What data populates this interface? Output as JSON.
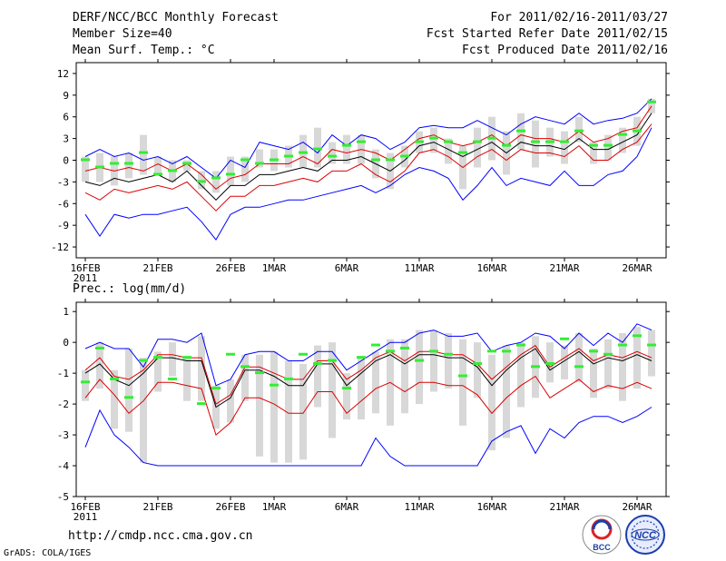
{
  "header": {
    "title": "DERF/NCC/BCC Monthly Forecast",
    "member_size": "Member Size=40",
    "variable": "Mean Surf. Temp.: °C",
    "period": "For 2011/02/16-2011/03/27",
    "refer_date": "Fcst Started Refer Date 2011/02/15",
    "produced_date": "Fcst Produced Date 2011/02/16"
  },
  "footer": {
    "url": "http://cmdp.ncc.cma.gov.cn",
    "credit": "GrADS: COLA/IGES",
    "logo_left_text": "BCC",
    "logo_right_text": "NCC"
  },
  "colors": {
    "envelope": "#0000ff",
    "spread": "#dd0000",
    "mean": "#000000",
    "box": "#d8d8d8",
    "median": "#33ee33"
  },
  "chart_data": [
    {
      "type": "line",
      "name": "temperature",
      "title": "Mean Surf. Temp.: °C",
      "xlabel": "",
      "ylabel": "",
      "ylim": [
        -13.5,
        13.5
      ],
      "yticks": [
        12,
        9,
        6,
        3,
        0,
        -3,
        -6,
        -9,
        -12
      ],
      "xticks": [
        {
          "day": 0,
          "label": "16FEB",
          "sub": "2011"
        },
        {
          "day": 5,
          "label": "21FEB"
        },
        {
          "day": 10,
          "label": "26FEB"
        },
        {
          "day": 13,
          "label": "1MAR"
        },
        {
          "day": 18,
          "label": "6MAR"
        },
        {
          "day": 23,
          "label": "11MAR"
        },
        {
          "day": 28,
          "label": "16MAR"
        },
        {
          "day": 33,
          "label": "21MAR"
        },
        {
          "day": 38,
          "label": "26MAR"
        }
      ],
      "days": 40,
      "series": [
        {
          "name": "ensemble max",
          "color": "#0000ff",
          "values": [
            0.5,
            1.5,
            0.5,
            1.0,
            0.0,
            0.5,
            -0.5,
            0.5,
            -1.0,
            -2.5,
            0.0,
            -1.0,
            2.5,
            2.0,
            1.5,
            2.5,
            1.0,
            3.5,
            2.0,
            3.5,
            3.0,
            1.5,
            2.5,
            4.5,
            4.8,
            4.5,
            4.5,
            5.5,
            4.5,
            3.5,
            5.0,
            6.0,
            5.5,
            5.0,
            6.5,
            5.0,
            5.5,
            5.8,
            6.5,
            8.5
          ]
        },
        {
          "name": "ensemble min",
          "color": "#0000ff",
          "values": [
            -7.5,
            -10.5,
            -7.5,
            -8.0,
            -7.5,
            -7.5,
            -7.0,
            -6.5,
            -8.5,
            -11.0,
            -7.5,
            -6.5,
            -6.5,
            -6.0,
            -5.5,
            -5.5,
            -5.0,
            -4.5,
            -4.0,
            -3.5,
            -4.5,
            -3.5,
            -2.0,
            -1.0,
            -1.5,
            -2.5,
            -5.5,
            -3.5,
            -1.0,
            -3.5,
            -2.5,
            -3.0,
            -3.5,
            -1.5,
            -3.5,
            -3.5,
            -2.0,
            -1.5,
            0.5,
            4.5
          ]
        },
        {
          "name": "spread upper",
          "color": "#dd0000",
          "values": [
            -1.5,
            -1.0,
            -1.5,
            -1.0,
            -1.5,
            -0.5,
            -1.5,
            -0.5,
            -2.0,
            -4.0,
            -2.5,
            -2.0,
            -0.5,
            -0.5,
            -0.5,
            0.5,
            -0.5,
            1.5,
            1.0,
            1.5,
            1.0,
            0.0,
            1.5,
            3.0,
            3.5,
            2.5,
            2.0,
            2.5,
            3.5,
            2.0,
            3.5,
            3.0,
            3.0,
            2.5,
            4.0,
            2.5,
            3.0,
            4.0,
            4.5,
            7.5
          ]
        },
        {
          "name": "ensemble mean",
          "color": "#000000",
          "values": [
            -3.0,
            -3.5,
            -2.5,
            -3.0,
            -2.5,
            -2.0,
            -3.0,
            -1.5,
            -3.5,
            -5.5,
            -3.5,
            -3.5,
            -2.0,
            -2.0,
            -1.5,
            -1.0,
            -1.5,
            0.0,
            0.0,
            0.5,
            -0.5,
            -1.5,
            0.0,
            2.0,
            2.5,
            1.5,
            0.5,
            1.5,
            2.5,
            1.0,
            2.5,
            2.0,
            2.0,
            1.5,
            3.0,
            1.5,
            1.5,
            2.5,
            3.5,
            6.5
          ]
        },
        {
          "name": "spread lower",
          "color": "#dd0000",
          "values": [
            -4.5,
            -5.5,
            -4.0,
            -4.5,
            -4.0,
            -3.5,
            -4.0,
            -3.0,
            -5.0,
            -7.0,
            -5.0,
            -5.0,
            -3.5,
            -3.5,
            -3.0,
            -2.5,
            -3.0,
            -1.5,
            -1.5,
            -0.5,
            -2.0,
            -3.0,
            -1.5,
            1.0,
            1.5,
            0.5,
            -1.0,
            0.5,
            1.5,
            0.0,
            1.5,
            1.0,
            1.0,
            0.5,
            2.0,
            0.0,
            0.0,
            1.5,
            2.5,
            5.0
          ]
        }
      ],
      "boxes": {
        "low": [
          -3.0,
          -3.0,
          -3.5,
          -2.5,
          -2.0,
          -2.0,
          -3.0,
          -1.5,
          -4.0,
          -4.5,
          -3.5,
          -3.0,
          -1.0,
          -1.5,
          -1.0,
          -1.0,
          -1.0,
          -0.5,
          -0.5,
          -0.5,
          -2.5,
          -4.0,
          -1.0,
          1.0,
          1.0,
          -0.5,
          -4.0,
          -1.0,
          0.0,
          -2.0,
          1.5,
          -1.0,
          0.5,
          -0.5,
          2.5,
          -0.5,
          0.0,
          1.0,
          2.0,
          6.5
        ],
        "high": [
          0.5,
          1.0,
          0.5,
          1.0,
          3.5,
          0.5,
          0.0,
          0.0,
          -1.5,
          -1.5,
          0.5,
          0.5,
          1.5,
          1.5,
          2.0,
          3.5,
          4.5,
          2.5,
          3.5,
          3.5,
          1.5,
          1.0,
          2.0,
          4.0,
          4.5,
          3.0,
          2.0,
          4.5,
          6.0,
          4.0,
          6.5,
          5.5,
          4.5,
          4.0,
          6.0,
          2.5,
          3.5,
          4.5,
          6.0,
          8.5
        ],
        "median": [
          0.0,
          -1.0,
          -0.5,
          -0.5,
          1.0,
          -2.0,
          -1.5,
          -0.5,
          -3.0,
          -2.5,
          -2.0,
          0.0,
          -0.5,
          0.0,
          0.5,
          1.0,
          1.5,
          0.5,
          2.0,
          2.5,
          0.0,
          0.0,
          0.5,
          2.5,
          3.0,
          2.5,
          1.0,
          2.5,
          3.0,
          2.0,
          4.0,
          2.5,
          2.5,
          2.5,
          4.0,
          2.0,
          2.0,
          3.5,
          4.0,
          8.0
        ]
      }
    },
    {
      "type": "line",
      "name": "precipitation",
      "title": "Prec.: log(mm/d)",
      "xlabel": "",
      "ylabel": "",
      "ylim": [
        -5,
        1.3
      ],
      "yticks": [
        1,
        0,
        -1,
        -2,
        -3,
        -4,
        -5
      ],
      "xticks": [
        {
          "day": 0,
          "label": "16FEB",
          "sub": "2011"
        },
        {
          "day": 5,
          "label": "21FEB"
        },
        {
          "day": 10,
          "label": "26FEB"
        },
        {
          "day": 13,
          "label": "1MAR"
        },
        {
          "day": 18,
          "label": "6MAR"
        },
        {
          "day": 23,
          "label": "11MAR"
        },
        {
          "day": 28,
          "label": "16MAR"
        },
        {
          "day": 33,
          "label": "21MAR"
        },
        {
          "day": 38,
          "label": "26MAR"
        }
      ],
      "days": 40,
      "series": [
        {
          "name": "ensemble max",
          "color": "#0000ff",
          "values": [
            -0.2,
            0.0,
            -0.2,
            -0.2,
            -0.8,
            0.1,
            0.1,
            0.0,
            0.3,
            -1.4,
            -1.2,
            -0.4,
            -0.3,
            -0.3,
            -0.6,
            -0.6,
            -0.3,
            -0.3,
            -0.9,
            -0.6,
            -0.3,
            0.0,
            0.0,
            0.3,
            0.4,
            0.2,
            0.2,
            0.3,
            -0.3,
            -0.1,
            0.0,
            0.3,
            0.2,
            -0.2,
            0.3,
            -0.1,
            0.3,
            0.0,
            0.6,
            0.4
          ]
        },
        {
          "name": "ensemble min",
          "color": "#0000ff",
          "values": [
            -3.4,
            -2.2,
            -3.0,
            -3.4,
            -3.9,
            -4.0,
            -4.0,
            -4.0,
            -4.0,
            -4.0,
            -4.0,
            -4.0,
            -4.0,
            -4.0,
            -4.0,
            -4.0,
            -4.0,
            -4.0,
            -4.0,
            -4.0,
            -3.1,
            -3.7,
            -4.0,
            -4.0,
            -4.0,
            -4.0,
            -4.0,
            -4.0,
            -3.2,
            -2.9,
            -2.7,
            -3.6,
            -2.8,
            -3.1,
            -2.6,
            -2.4,
            -2.4,
            -2.6,
            -2.4,
            -2.1
          ]
        },
        {
          "name": "spread upper",
          "color": "#dd0000",
          "values": [
            -0.9,
            -0.5,
            -1.1,
            -1.2,
            -0.9,
            -0.4,
            -0.4,
            -0.5,
            -0.5,
            -2.0,
            -1.7,
            -0.8,
            -0.8,
            -1.0,
            -1.2,
            -1.2,
            -0.6,
            -0.6,
            -1.2,
            -0.9,
            -0.5,
            -0.3,
            -0.6,
            -0.3,
            -0.3,
            -0.4,
            -0.4,
            -0.7,
            -1.2,
            -0.8,
            -0.4,
            -0.1,
            -0.8,
            -0.5,
            -0.2,
            -0.6,
            -0.4,
            -0.5,
            -0.3,
            -0.5
          ]
        },
        {
          "name": "ensemble mean",
          "color": "#000000",
          "values": [
            -1.0,
            -0.7,
            -1.2,
            -1.4,
            -1.0,
            -0.5,
            -0.5,
            -0.6,
            -0.6,
            -2.1,
            -1.8,
            -0.9,
            -0.9,
            -1.1,
            -1.4,
            -1.4,
            -0.7,
            -0.7,
            -1.4,
            -1.0,
            -0.6,
            -0.4,
            -0.7,
            -0.4,
            -0.4,
            -0.5,
            -0.5,
            -0.8,
            -1.4,
            -0.9,
            -0.5,
            -0.2,
            -0.9,
            -0.6,
            -0.3,
            -0.7,
            -0.5,
            -0.6,
            -0.4,
            -0.6
          ]
        },
        {
          "name": "spread lower",
          "color": "#dd0000",
          "values": [
            -1.8,
            -1.2,
            -1.7,
            -2.3,
            -1.9,
            -1.3,
            -1.3,
            -1.4,
            -1.5,
            -3.0,
            -2.6,
            -1.8,
            -1.8,
            -2.0,
            -2.3,
            -2.3,
            -1.6,
            -1.6,
            -2.3,
            -1.9,
            -1.5,
            -1.3,
            -1.6,
            -1.3,
            -1.3,
            -1.4,
            -1.4,
            -1.7,
            -2.3,
            -1.8,
            -1.4,
            -1.1,
            -1.8,
            -1.5,
            -1.2,
            -1.6,
            -1.4,
            -1.5,
            -1.3,
            -1.5
          ]
        }
      ],
      "boxes": {
        "low": [
          -1.9,
          -1.5,
          -2.8,
          -2.9,
          -3.9,
          -1.6,
          -1.1,
          -1.9,
          -1.9,
          -2.8,
          -2.6,
          -1.9,
          -3.7,
          -3.9,
          -3.9,
          -3.8,
          -2.1,
          -3.1,
          -2.5,
          -2.5,
          -2.3,
          -2.7,
          -2.3,
          -2.0,
          -1.6,
          -1.5,
          -2.7,
          -1.8,
          -3.5,
          -3.1,
          -2.1,
          -1.8,
          -1.3,
          -1.2,
          -1.3,
          -1.8,
          -1.5,
          -1.9,
          -1.5,
          -1.1
        ],
        "high": [
          -0.9,
          0.0,
          -0.9,
          -0.2,
          -0.5,
          -0.3,
          0.0,
          -0.5,
          0.2,
          -1.4,
          -1.2,
          -0.4,
          -0.4,
          -0.3,
          -0.6,
          -0.7,
          -0.1,
          0.0,
          -1.0,
          -0.5,
          -0.3,
          0.1,
          0.1,
          0.4,
          0.4,
          0.3,
          0.1,
          0.0,
          -0.4,
          -0.1,
          0.0,
          0.2,
          0.0,
          -0.1,
          0.3,
          -0.2,
          0.1,
          0.3,
          0.5,
          0.4
        ],
        "median": [
          -1.3,
          -0.2,
          -1.2,
          -1.8,
          -0.6,
          -0.5,
          -1.2,
          -0.5,
          -2.0,
          -1.5,
          -0.4,
          -0.8,
          -1.0,
          -1.4,
          -1.2,
          -0.4,
          -0.7,
          -0.6,
          -1.5,
          -0.5,
          -0.1,
          -0.3,
          -0.2,
          -0.6,
          -0.3,
          -0.4,
          -1.1,
          -0.7,
          -0.3,
          -0.3,
          -0.1,
          -0.8,
          -0.7,
          0.1,
          -0.8,
          -0.3,
          -0.4,
          -0.1,
          0.2,
          -0.1
        ]
      }
    }
  ]
}
